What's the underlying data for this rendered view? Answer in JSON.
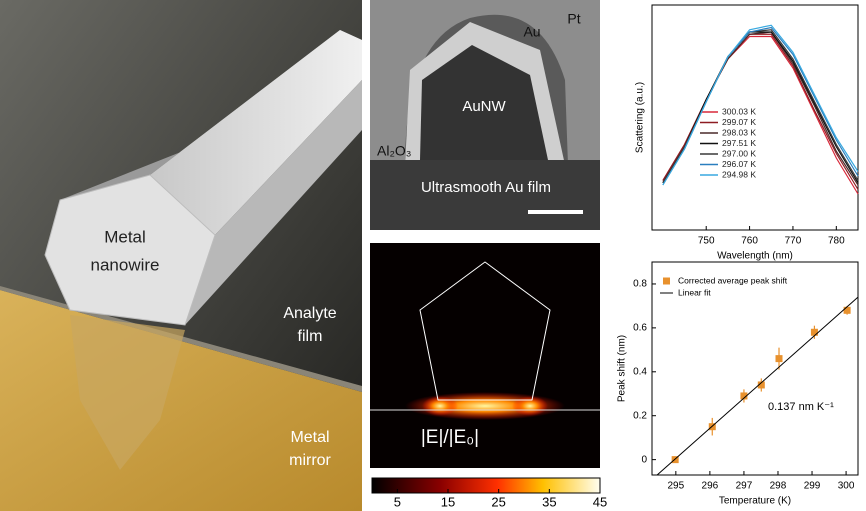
{
  "panels": {
    "schematic": {
      "nanowire_label": [
        "Metal",
        "nanowire"
      ],
      "film_label": [
        "Analyte",
        "film"
      ],
      "mirror_label": [
        "Metal",
        "mirror"
      ]
    },
    "tem": {
      "labels": {
        "au": "Au",
        "pt": "Pt",
        "core": "AuNW",
        "oxide": "Al₂O₃",
        "substrate": "Ultrasmooth Au film"
      }
    },
    "field_map": {
      "label": "|E|/|E₀|",
      "colorbar": {
        "lim": [
          0,
          45
        ],
        "ticks": [
          5,
          15,
          25,
          35,
          45
        ]
      }
    }
  },
  "chart_data": [
    {
      "type": "line",
      "xlabel": "Wavelength (nm)",
      "ylabel": "Scattering (a.u.)",
      "x": [
        740,
        745,
        750,
        755,
        760,
        765,
        770,
        775,
        780,
        785
      ],
      "xlim": [
        737.5,
        785
      ],
      "xticks": [
        750,
        760,
        770,
        780
      ],
      "ylim": [
        0,
        1
      ],
      "series": [
        {
          "name": "300.03 K",
          "color": "#d8283a",
          "values": [
            0.22,
            0.38,
            0.58,
            0.76,
            0.86,
            0.86,
            0.72,
            0.52,
            0.32,
            0.16
          ]
        },
        {
          "name": "299.07 K",
          "color": "#8e1c22",
          "values": [
            0.22,
            0.38,
            0.58,
            0.76,
            0.87,
            0.87,
            0.73,
            0.53,
            0.34,
            0.18
          ]
        },
        {
          "name": "298.03 K",
          "color": "#4a2a2a",
          "values": [
            0.21,
            0.37,
            0.58,
            0.76,
            0.87,
            0.88,
            0.74,
            0.55,
            0.35,
            0.2
          ]
        },
        {
          "name": "297.51 K",
          "color": "#111111",
          "values": [
            0.21,
            0.37,
            0.58,
            0.77,
            0.88,
            0.88,
            0.75,
            0.56,
            0.37,
            0.21
          ]
        },
        {
          "name": "297.00 K",
          "color": "#3a3a3a",
          "values": [
            0.21,
            0.37,
            0.57,
            0.77,
            0.88,
            0.89,
            0.76,
            0.57,
            0.38,
            0.22
          ]
        },
        {
          "name": "296.07 K",
          "color": "#2a7fbf",
          "values": [
            0.2,
            0.36,
            0.57,
            0.77,
            0.88,
            0.9,
            0.78,
            0.59,
            0.4,
            0.24
          ]
        },
        {
          "name": "294.98 K",
          "color": "#39a9e0",
          "values": [
            0.2,
            0.36,
            0.57,
            0.77,
            0.89,
            0.91,
            0.79,
            0.6,
            0.41,
            0.26
          ]
        }
      ]
    },
    {
      "type": "scatter",
      "xlabel": "Temperature (K)",
      "ylabel": "Peak shift (nm)",
      "annotation": "0.137 nm K⁻¹",
      "xlim": [
        294.3,
        300.35
      ],
      "xticks": [
        295,
        296,
        297,
        298,
        299,
        300
      ],
      "ylim": [
        -0.07,
        0.9
      ],
      "yticks": [
        0,
        0.2,
        0.4,
        0.6,
        0.8
      ],
      "series": [
        {
          "name": "Corrected average peak shift",
          "color": "#e8912d",
          "x": [
            294.98,
            296.07,
            297.0,
            297.51,
            298.03,
            299.07,
            300.03
          ],
          "values": [
            0,
            0.15,
            0.29,
            0.34,
            0.46,
            0.58,
            0.68
          ],
          "errors": [
            0.01,
            0.04,
            0.03,
            0.03,
            0.05,
            0.03,
            0.02
          ]
        },
        {
          "name": "Linear fit",
          "color": "#000000",
          "mode": "line",
          "x": [
            294.45,
            300.35
          ],
          "values": [
            -0.07,
            0.74
          ]
        }
      ]
    }
  ]
}
